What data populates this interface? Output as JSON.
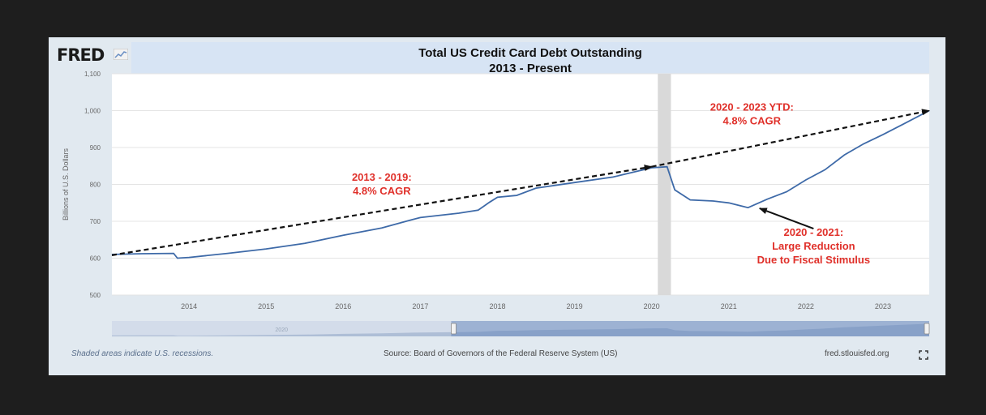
{
  "brand": {
    "logo_text": "FRED"
  },
  "chart_data": {
    "type": "line",
    "title": "Total US Credit Card Debt Outstanding",
    "subtitle": "2013 - Present",
    "ylabel": "Billions of U.S. Dollars",
    "xlabel": "",
    "ylim": [
      500,
      1100
    ],
    "yticks": [
      500,
      600,
      700,
      800,
      900,
      1000,
      1100
    ],
    "ytick_labels": [
      "500",
      "600",
      "700",
      "800",
      "900",
      "1,000",
      "1,100"
    ],
    "xlim": [
      2013.0,
      2023.6
    ],
    "xticks": [
      2014,
      2015,
      2016,
      2017,
      2018,
      2019,
      2020,
      2021,
      2022,
      2023
    ],
    "xtick_labels": [
      "2014",
      "2015",
      "2016",
      "2017",
      "2018",
      "2019",
      "2020",
      "2021",
      "2022",
      "2023"
    ],
    "grid": true,
    "recession_shading": [
      2020.08,
      2020.25
    ],
    "series": [
      {
        "x": [
          2013.0,
          2013.4,
          2013.8,
          2013.85,
          2014.0,
          2014.5,
          2015.0,
          2015.5,
          2016.0,
          2016.5,
          2016.85,
          2017.0,
          2017.5,
          2017.75,
          2017.9,
          2018.0,
          2018.25,
          2018.5,
          2019.0,
          2019.5,
          2020.0,
          2020.2,
          2020.3,
          2020.5,
          2020.8,
          2021.0,
          2021.25,
          2021.5,
          2021.75,
          2022.0,
          2022.25,
          2022.5,
          2022.75,
          2023.0,
          2023.25,
          2023.6
        ],
        "values": [
          610,
          612,
          613,
          600,
          602,
          613,
          625,
          640,
          662,
          682,
          702,
          710,
          722,
          730,
          752,
          765,
          770,
          790,
          805,
          820,
          845,
          848,
          785,
          758,
          755,
          750,
          737,
          760,
          780,
          812,
          840,
          880,
          910,
          935,
          962,
          1000
        ],
        "color": "#3e6aa8"
      }
    ],
    "trendlines": [
      {
        "x": [
          2013.0,
          2020.0
        ],
        "values": [
          608,
          848
        ]
      },
      {
        "x": [
          2020.0,
          2023.6
        ],
        "values": [
          848,
          1000
        ]
      }
    ],
    "annotations": [
      {
        "lines": [
          "2013 - 2019:",
          "4.8% CAGR"
        ],
        "x": 2016.5,
        "y": 810
      },
      {
        "lines": [
          "2020 - 2023 YTD:",
          "4.8% CAGR"
        ],
        "x": 2021.3,
        "y": 1000
      },
      {
        "lines": [
          "2020 - 2021:",
          "Large Reduction",
          "Due to Fiscal Stimulus"
        ],
        "x": 2022.1,
        "y": 660
      }
    ],
    "arrow_annotation": {
      "from": [
        2022.1,
        680
      ],
      "to": [
        2021.4,
        735
      ]
    },
    "navigator": {
      "label": "2020"
    }
  },
  "footer": {
    "note": "Shaded areas indicate U.S. recessions.",
    "source": "Source: Board of Governors of the Federal Reserve System (US)",
    "url": "fred.stlouisfed.org"
  },
  "icons": {
    "expand": "expand-icon",
    "logo_mark": "chart-mark-icon"
  }
}
